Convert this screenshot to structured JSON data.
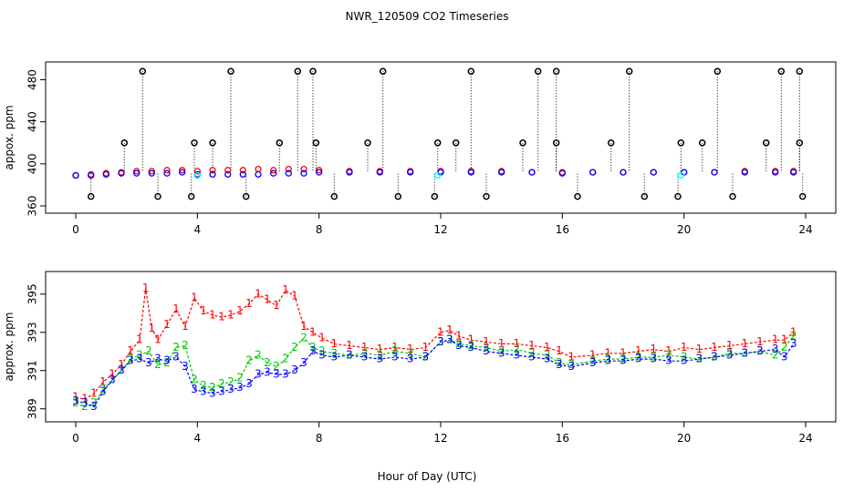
{
  "title": "NWR_120509  CO2 Timeseries",
  "xlabel": "Hour of Day (UTC)",
  "colors": {
    "red": "#ff0000",
    "green": "#00cc00",
    "blue": "#0000ff",
    "cyan": "#00ffff",
    "black": "#000000"
  },
  "chart_data": [
    {
      "type": "scatter",
      "panel": "top",
      "title": "NWR_120509  CO2 Timeseries",
      "ylabel": "appox. ppm",
      "xlim": [
        0,
        24
      ],
      "ylim": [
        360,
        490
      ],
      "xticks": [
        0,
        4,
        8,
        12,
        16,
        20,
        24
      ],
      "yticks": [
        360,
        400,
        440,
        480
      ],
      "series": [
        {
          "name": "red",
          "color": "#ff0000",
          "x": [
            0.0,
            0.5,
            1.0,
            1.5,
            2.0,
            2.5,
            3.0,
            3.5,
            4.0,
            4.5,
            5.0,
            5.5,
            6.0,
            6.5,
            7.0,
            7.5,
            8.0,
            9,
            10,
            11,
            12,
            13,
            14,
            15,
            16,
            17,
            18,
            19,
            20,
            21,
            22,
            23,
            23.6
          ],
          "y": [
            389,
            390,
            391,
            392,
            393,
            393,
            394,
            394,
            393,
            394,
            394,
            394,
            395,
            394,
            395,
            395,
            394,
            393,
            393,
            393,
            393,
            393,
            393,
            392,
            392,
            392,
            392,
            392,
            392,
            392,
            393,
            393,
            393
          ]
        },
        {
          "name": "blue",
          "color": "#0000ff",
          "x": [
            0.0,
            0.5,
            1.0,
            1.5,
            2.0,
            2.5,
            3.0,
            3.5,
            4.0,
            4.5,
            5.0,
            5.5,
            6.0,
            6.5,
            7.0,
            7.5,
            8.0,
            9,
            10,
            11,
            12,
            13,
            14,
            15,
            16,
            17,
            18,
            19,
            20,
            21,
            22,
            23,
            23.6
          ],
          "y": [
            389,
            389,
            390,
            391,
            391,
            391,
            391,
            392,
            390,
            390,
            390,
            390,
            390,
            391,
            391,
            391,
            392,
            392,
            392,
            392,
            392,
            392,
            392,
            392,
            391,
            392,
            392,
            392,
            392,
            392,
            392,
            392,
            392
          ]
        },
        {
          "name": "cyan",
          "color": "#00ffff",
          "x": [
            4.0,
            11.9,
            19.9
          ],
          "y": [
            389,
            389,
            389
          ]
        },
        {
          "name": "black-outliers",
          "color": "#000000",
          "x": [
            0.5,
            1.6,
            2.2,
            2.7,
            3.8,
            3.9,
            4.5,
            5.1,
            5.6,
            6.7,
            7.3,
            7.8,
            7.9,
            8.5,
            9.6,
            10.1,
            10.6,
            11.8,
            11.9,
            12.5,
            13.0,
            13.5,
            14.7,
            15.2,
            15.8,
            15.8,
            16.5,
            17.6,
            18.2,
            18.7,
            19.8,
            19.9,
            20.6,
            21.1,
            21.6,
            22.7,
            23.2,
            23.8,
            23.8,
            23.9
          ],
          "y": [
            369,
            420,
            488,
            369,
            369,
            420,
            420,
            488,
            369,
            420,
            488,
            488,
            420,
            369,
            420,
            488,
            369,
            369,
            420,
            420,
            488,
            369,
            420,
            488,
            488,
            420,
            369,
            420,
            488,
            369,
            369,
            420,
            420,
            488,
            369,
            420,
            488,
            488,
            420,
            369
          ]
        }
      ]
    },
    {
      "type": "scatter",
      "panel": "bottom",
      "ylabel": "approx. ppm",
      "xlim": [
        0,
        24
      ],
      "ylim": [
        388.7,
        395.8
      ],
      "xticks": [
        0,
        4,
        8,
        12,
        16,
        20,
        24
      ],
      "yticks": [
        389,
        391,
        393,
        395
      ],
      "series": [
        {
          "name": "1",
          "color": "#ff0000",
          "x": [
            0.0,
            0.3,
            0.6,
            0.9,
            1.2,
            1.5,
            1.8,
            2.1,
            2.3,
            2.5,
            2.7,
            3.0,
            3.3,
            3.6,
            3.9,
            4.2,
            4.5,
            4.8,
            5.1,
            5.4,
            5.7,
            6.0,
            6.3,
            6.6,
            6.9,
            7.2,
            7.5,
            7.8,
            8.1,
            8.5,
            9,
            9.5,
            10,
            10.5,
            11,
            11.5,
            12,
            12.3,
            12.6,
            13,
            13.5,
            14,
            14.5,
            15,
            15.5,
            15.9,
            16.3,
            17,
            17.5,
            18,
            18.5,
            19,
            19.5,
            20,
            20.5,
            21,
            21.5,
            22,
            22.5,
            23,
            23.3,
            23.6
          ],
          "y": [
            389.6,
            389.5,
            389.8,
            390.4,
            390.8,
            391.3,
            392.0,
            392.6,
            395.3,
            393.2,
            392.6,
            393.4,
            394.2,
            393.3,
            394.8,
            394.1,
            393.9,
            393.8,
            393.9,
            394.1,
            394.5,
            395.0,
            394.7,
            394.4,
            395.2,
            394.9,
            393.3,
            393.0,
            392.7,
            392.4,
            392.3,
            392.2,
            392.1,
            392.2,
            392.1,
            392.2,
            393.0,
            393.1,
            392.8,
            392.6,
            392.5,
            392.4,
            392.4,
            392.3,
            392.2,
            392.0,
            391.7,
            391.8,
            391.9,
            391.9,
            392.0,
            392.1,
            392.0,
            392.2,
            392.1,
            392.2,
            392.3,
            392.4,
            392.5,
            392.6,
            392.6,
            393.0
          ]
        },
        {
          "name": "2",
          "color": "#00cc00",
          "x": [
            0.0,
            0.3,
            0.6,
            0.9,
            1.2,
            1.5,
            1.8,
            2.1,
            2.4,
            2.7,
            3.0,
            3.3,
            3.6,
            3.9,
            4.2,
            4.5,
            4.8,
            5.1,
            5.4,
            5.7,
            6.0,
            6.3,
            6.6,
            6.9,
            7.2,
            7.5,
            7.8,
            8.1,
            8.5,
            9,
            9.5,
            10,
            10.5,
            11,
            11.5,
            12,
            12.3,
            12.6,
            13,
            13.5,
            14,
            14.5,
            15,
            15.5,
            15.9,
            16.3,
            17,
            17.5,
            18,
            18.5,
            19,
            19.5,
            20,
            20.5,
            21,
            21.5,
            22,
            22.5,
            23,
            23.3,
            23.6
          ],
          "y": [
            389.3,
            389.1,
            389.3,
            390.0,
            390.5,
            391.0,
            391.6,
            391.8,
            392.0,
            391.3,
            391.4,
            392.2,
            392.3,
            390.5,
            390.2,
            390.1,
            390.3,
            390.4,
            390.6,
            391.5,
            391.8,
            391.4,
            391.2,
            391.6,
            392.2,
            392.7,
            392.2,
            392.0,
            391.9,
            391.8,
            391.9,
            391.8,
            392.0,
            391.9,
            391.7,
            392.5,
            392.6,
            392.4,
            392.3,
            392.2,
            392.0,
            392.1,
            391.9,
            391.8,
            391.4,
            391.3,
            391.5,
            391.6,
            391.6,
            391.7,
            391.7,
            391.8,
            391.7,
            391.6,
            391.7,
            391.9,
            391.9,
            392.0,
            391.8,
            392.2,
            392.8
          ]
        },
        {
          "name": "3",
          "color": "#0000ff",
          "x": [
            0.0,
            0.3,
            0.6,
            0.9,
            1.2,
            1.5,
            1.8,
            2.1,
            2.4,
            2.7,
            3.0,
            3.3,
            3.6,
            3.9,
            4.2,
            4.5,
            4.8,
            5.1,
            5.4,
            5.7,
            6.0,
            6.3,
            6.6,
            6.9,
            7.2,
            7.5,
            7.8,
            8.1,
            8.5,
            9,
            9.5,
            10,
            10.5,
            11,
            11.5,
            12,
            12.3,
            12.6,
            13,
            13.5,
            14,
            14.5,
            15,
            15.5,
            15.9,
            16.3,
            17,
            17.5,
            18,
            18.5,
            19,
            19.5,
            20,
            20.5,
            21,
            21.5,
            22,
            22.5,
            23,
            23.3,
            23.6
          ],
          "y": [
            389.4,
            389.3,
            389.1,
            389.9,
            390.5,
            391.0,
            391.5,
            391.6,
            391.4,
            391.6,
            391.5,
            391.7,
            391.2,
            390.0,
            389.9,
            389.8,
            389.9,
            390.0,
            390.1,
            390.3,
            390.8,
            390.9,
            390.8,
            390.8,
            391.0,
            391.4,
            392.0,
            391.8,
            391.7,
            391.8,
            391.7,
            391.6,
            391.7,
            391.6,
            391.7,
            392.5,
            392.6,
            392.3,
            392.2,
            392.0,
            391.9,
            391.8,
            391.7,
            391.6,
            391.3,
            391.2,
            391.4,
            391.5,
            391.5,
            391.6,
            391.6,
            391.5,
            391.5,
            391.6,
            391.7,
            391.8,
            391.9,
            392.0,
            392.1,
            391.7,
            392.4
          ]
        }
      ]
    }
  ]
}
